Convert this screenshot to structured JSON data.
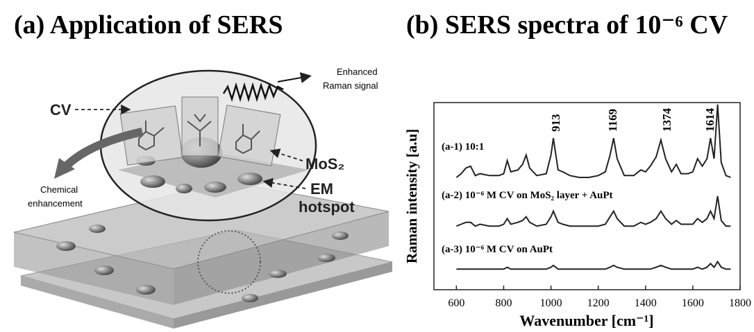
{
  "panel_a": {
    "title": "(a) Application of SERS",
    "labels": {
      "cv": "CV",
      "signal": [
        "Enhanced",
        "Raman signal"
      ],
      "mos2": "MoS₂",
      "chemical": [
        "Chemical",
        "enhancement"
      ],
      "em": [
        "EM",
        "hotspot"
      ]
    }
  },
  "chart_data": {
    "type": "line",
    "title": "(b) SERS spectra of 10⁻⁶ CV",
    "x_label": "Wavenumber [cm⁻¹]",
    "y_label": "Raman intensity  [a.u]",
    "x": [
      600,
      620,
      640,
      660,
      680,
      700,
      740,
      780,
      800,
      815,
      830,
      860,
      880,
      895,
      910,
      940,
      980,
      1000,
      1010,
      1030,
      1050,
      1080,
      1120,
      1160,
      1200,
      1230,
      1250,
      1265,
      1280,
      1310,
      1350,
      1380,
      1400,
      1420,
      1445,
      1465,
      1485,
      1510,
      1530,
      1550,
      1580,
      1600,
      1620,
      1640,
      1660,
      1675,
      1690,
      1705,
      1720,
      1740,
      1760
    ],
    "series": [
      {
        "name": "(a-1) 10:1",
        "color": "#222222",
        "values": [
          60,
          62,
          65,
          66,
          61,
          62,
          61,
          61,
          62,
          69,
          63,
          64,
          67,
          72,
          65,
          61,
          62,
          72,
          81,
          64,
          63,
          61,
          60,
          60,
          61,
          63,
          72,
          81,
          70,
          61,
          61,
          64,
          63,
          66,
          71,
          80,
          70,
          63,
          67,
          62,
          62,
          63,
          70,
          66,
          70,
          81,
          70,
          99,
          68,
          61,
          60
        ]
      },
      {
        "name": "(a-2) 10⁻⁶ M CV on MoS₂ layer  + AuPt",
        "color": "#222222",
        "values": [
          34,
          35,
          36,
          36,
          34,
          35,
          34,
          34,
          35,
          38,
          35,
          36,
          37,
          39,
          36,
          34,
          35,
          39,
          42,
          36,
          35,
          34,
          34,
          34,
          34,
          35,
          39,
          42,
          38,
          34,
          34,
          36,
          35,
          36,
          38,
          42,
          38,
          35,
          37,
          35,
          35,
          35,
          38,
          36,
          38,
          42,
          38,
          50,
          37,
          34,
          34
        ]
      },
      {
        "name": "(a-3)  10⁻⁶ M CV on AuPt",
        "color": "#222222",
        "values": [
          11,
          11,
          11,
          11,
          11,
          11,
          11,
          11,
          11,
          12,
          11,
          11,
          11,
          11,
          11,
          11,
          11,
          12,
          13,
          11,
          11,
          11,
          11,
          11,
          11,
          11,
          12,
          13,
          12,
          11,
          11,
          11,
          11,
          11,
          12,
          13,
          12,
          11,
          11,
          11,
          11,
          11,
          12,
          11,
          12,
          14,
          12,
          15,
          12,
          11,
          11
        ]
      }
    ],
    "xlim": [
      505,
      1800
    ],
    "ylim": [
      0,
      100
    ],
    "xticks": [
      600,
      800,
      1000,
      1200,
      1400,
      1600,
      1800
    ],
    "annotations": [
      "913",
      "1169",
      "1374",
      "1614"
    ]
  }
}
